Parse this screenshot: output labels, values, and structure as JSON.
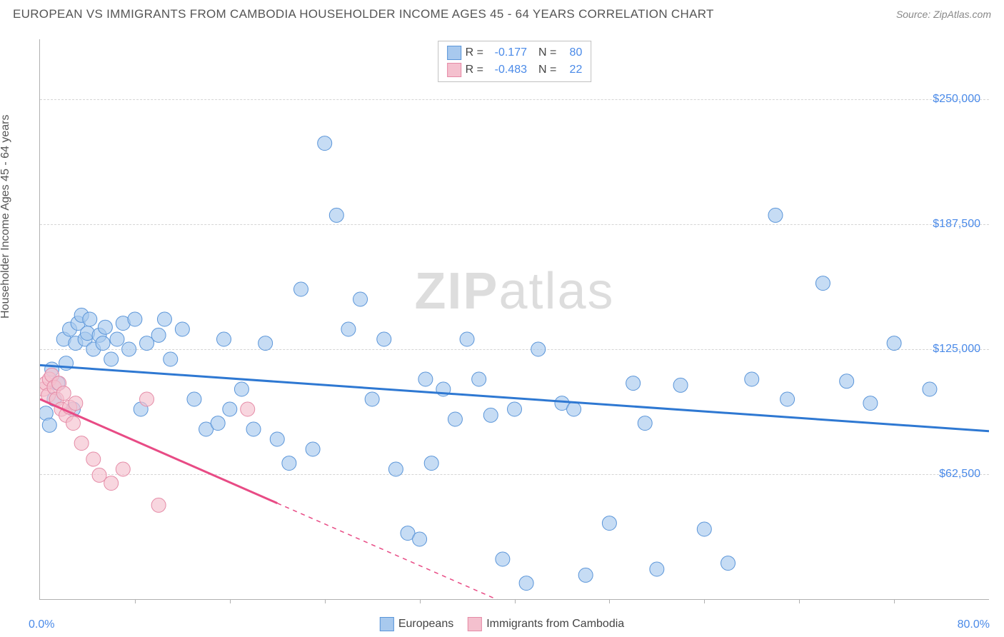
{
  "title": "EUROPEAN VS IMMIGRANTS FROM CAMBODIA HOUSEHOLDER INCOME AGES 45 - 64 YEARS CORRELATION CHART",
  "source_label": "Source:",
  "source_name": "ZipAtlas.com",
  "y_axis_label": "Householder Income Ages 45 - 64 years",
  "watermark_a": "ZIP",
  "watermark_b": "atlas",
  "chart": {
    "type": "scatter",
    "xlim": [
      0,
      80
    ],
    "ylim": [
      0,
      280000
    ],
    "x_min_label": "0.0%",
    "x_max_label": "80.0%",
    "y_ticks": [
      62500,
      125000,
      187500,
      250000
    ],
    "y_tick_labels": [
      "$62,500",
      "$125,000",
      "$187,500",
      "$250,000"
    ],
    "x_ticks": [
      8,
      16,
      24,
      32,
      40,
      48,
      56,
      64,
      72
    ],
    "background_color": "#ffffff",
    "grid_color": "#d5d5d5",
    "series": [
      {
        "name": "Europeans",
        "R": "-0.177",
        "N": "80",
        "fill_color": "#a8c9ee",
        "stroke_color": "#5a95d9",
        "marker_opacity": 0.65,
        "marker_radius": 10,
        "trend_color": "#2e78d2",
        "trend_width": 3,
        "trend": {
          "x1": 0,
          "y1": 117000,
          "x2": 80,
          "y2": 84000
        },
        "points": [
          [
            0.5,
            93000
          ],
          [
            0.8,
            87000
          ],
          [
            1.0,
            115000
          ],
          [
            1.2,
            100000
          ],
          [
            1.5,
            108000
          ],
          [
            2.0,
            130000
          ],
          [
            2.2,
            118000
          ],
          [
            2.5,
            135000
          ],
          [
            2.8,
            95000
          ],
          [
            3.0,
            128000
          ],
          [
            3.2,
            138000
          ],
          [
            3.5,
            142000
          ],
          [
            3.8,
            130000
          ],
          [
            4.0,
            133000
          ],
          [
            4.2,
            140000
          ],
          [
            4.5,
            125000
          ],
          [
            5.0,
            132000
          ],
          [
            5.3,
            128000
          ],
          [
            5.5,
            136000
          ],
          [
            6.0,
            120000
          ],
          [
            6.5,
            130000
          ],
          [
            7.0,
            138000
          ],
          [
            7.5,
            125000
          ],
          [
            8.0,
            140000
          ],
          [
            8.5,
            95000
          ],
          [
            9.0,
            128000
          ],
          [
            10.0,
            132000
          ],
          [
            10.5,
            140000
          ],
          [
            11.0,
            120000
          ],
          [
            12.0,
            135000
          ],
          [
            13.0,
            100000
          ],
          [
            14.0,
            85000
          ],
          [
            15.0,
            88000
          ],
          [
            15.5,
            130000
          ],
          [
            16.0,
            95000
          ],
          [
            17.0,
            105000
          ],
          [
            18.0,
            85000
          ],
          [
            19.0,
            128000
          ],
          [
            20.0,
            80000
          ],
          [
            21.0,
            68000
          ],
          [
            22.0,
            155000
          ],
          [
            23.0,
            75000
          ],
          [
            24.0,
            228000
          ],
          [
            25.0,
            192000
          ],
          [
            26.0,
            135000
          ],
          [
            27.0,
            150000
          ],
          [
            28.0,
            100000
          ],
          [
            29.0,
            130000
          ],
          [
            30.0,
            65000
          ],
          [
            31.0,
            33000
          ],
          [
            32.0,
            30000
          ],
          [
            32.5,
            110000
          ],
          [
            33.0,
            68000
          ],
          [
            34.0,
            105000
          ],
          [
            35.0,
            90000
          ],
          [
            36.0,
            130000
          ],
          [
            37.0,
            110000
          ],
          [
            38.0,
            92000
          ],
          [
            39.0,
            20000
          ],
          [
            40.0,
            95000
          ],
          [
            41.0,
            8000
          ],
          [
            42.0,
            125000
          ],
          [
            44.0,
            98000
          ],
          [
            45.0,
            95000
          ],
          [
            46.0,
            12000
          ],
          [
            48.0,
            38000
          ],
          [
            50.0,
            108000
          ],
          [
            51.0,
            88000
          ],
          [
            52.0,
            15000
          ],
          [
            54.0,
            107000
          ],
          [
            56.0,
            35000
          ],
          [
            58.0,
            18000
          ],
          [
            60.0,
            110000
          ],
          [
            62.0,
            192000
          ],
          [
            63.0,
            100000
          ],
          [
            66.0,
            158000
          ],
          [
            68.0,
            109000
          ],
          [
            70.0,
            98000
          ],
          [
            72.0,
            128000
          ],
          [
            75.0,
            105000
          ]
        ]
      },
      {
        "name": "Immigrants from Cambodia",
        "R": "-0.483",
        "N": "22",
        "fill_color": "#f4c0ce",
        "stroke_color": "#e58aa6",
        "marker_opacity": 0.65,
        "marker_radius": 10,
        "trend_color": "#e84b85",
        "trend_width": 3,
        "trend": {
          "x1": 0,
          "y1": 100000,
          "x2": 20,
          "y2": 48000
        },
        "trend_dash_ext": {
          "x1": 20,
          "y1": 48000,
          "x2": 40,
          "y2": -4000
        },
        "points": [
          [
            0.3,
            105000
          ],
          [
            0.5,
            108000
          ],
          [
            0.7,
            102000
          ],
          [
            0.8,
            110000
          ],
          [
            1.0,
            112000
          ],
          [
            1.2,
            106000
          ],
          [
            1.4,
            100000
          ],
          [
            1.6,
            108000
          ],
          [
            1.8,
            95000
          ],
          [
            2.0,
            103000
          ],
          [
            2.2,
            92000
          ],
          [
            2.5,
            96000
          ],
          [
            2.8,
            88000
          ],
          [
            3.0,
            98000
          ],
          [
            3.5,
            78000
          ],
          [
            4.5,
            70000
          ],
          [
            5.0,
            62000
          ],
          [
            6.0,
            58000
          ],
          [
            7.0,
            65000
          ],
          [
            9.0,
            100000
          ],
          [
            10.0,
            47000
          ],
          [
            17.5,
            95000
          ]
        ]
      }
    ]
  },
  "legend_bottom": [
    {
      "label": "Europeans",
      "fill": "#a8c9ee",
      "stroke": "#5a95d9"
    },
    {
      "label": "Immigrants from Cambodia",
      "fill": "#f4c0ce",
      "stroke": "#e58aa6"
    }
  ]
}
